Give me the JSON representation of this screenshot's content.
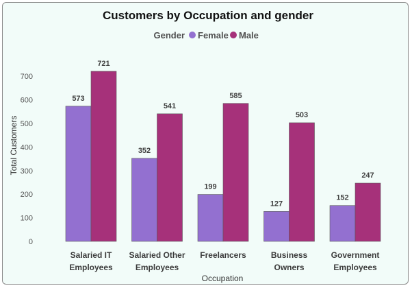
{
  "chart_data": {
    "type": "bar",
    "title": "Customers by Occupation and gender",
    "legend_title": "Gender",
    "legend_position": "top-center",
    "xlabel": "Occupation",
    "ylabel": "Total Customers",
    "ylim": [
      0,
      750
    ],
    "yticks": [
      0,
      100,
      200,
      300,
      400,
      500,
      600,
      700
    ],
    "grid": false,
    "categories": [
      [
        "Salaried IT",
        "Employees"
      ],
      [
        "Salaried Other",
        "Employees"
      ],
      [
        "Freelancers"
      ],
      [
        "Business",
        "Owners"
      ],
      [
        "Government",
        "Employees"
      ]
    ],
    "series": [
      {
        "name": "Female",
        "color": "#9370d0",
        "values": [
          573,
          352,
          199,
          127,
          152
        ]
      },
      {
        "name": "Male",
        "color": "#a6317a",
        "values": [
          721,
          541,
          585,
          503,
          247
        ]
      }
    ]
  }
}
